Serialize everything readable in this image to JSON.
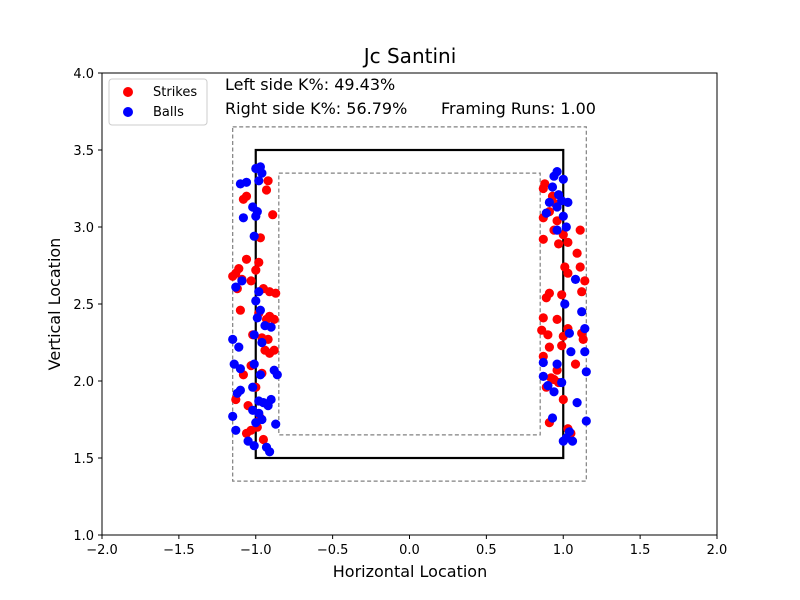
{
  "chart_data": {
    "type": "scatter",
    "title": "Jc Santini",
    "xlabel": "Horizontal Location",
    "ylabel": "Vertical Location",
    "xlim": [
      -2.0,
      2.0
    ],
    "ylim": [
      1.0,
      4.0
    ],
    "xticks": [
      "−2.0",
      "−1.5",
      "−1.0",
      "−0.5",
      "0.0",
      "0.5",
      "1.0",
      "1.5",
      "2.0"
    ],
    "yticks": [
      "1.0",
      "1.5",
      "2.0",
      "2.5",
      "3.0",
      "3.5",
      "4.0"
    ],
    "grid": false,
    "legend_position": "top-left",
    "annotations": {
      "left_k": "Left side K%: 49.43%",
      "right_k": "Right side K%: 56.79%",
      "framing": "Framing Runs: 1.00"
    },
    "zones": {
      "strike_zone": {
        "x": [
          -1.0,
          1.0
        ],
        "y": [
          1.5,
          3.5
        ]
      },
      "outer_zone": {
        "x": [
          -1.15,
          1.15
        ],
        "y": [
          1.35,
          3.65
        ]
      },
      "inner_zone": {
        "x": [
          -0.85,
          0.85
        ],
        "y": [
          1.65,
          3.35
        ]
      }
    },
    "series": [
      {
        "name": "Strikes",
        "color": "#ff0000",
        "points": [
          [
            -1.15,
            2.68
          ],
          [
            -1.13,
            2.7
          ],
          [
            -1.11,
            2.73
          ],
          [
            -1.09,
            2.66
          ],
          [
            -1.12,
            2.6
          ],
          [
            -1.08,
            3.18
          ],
          [
            -1.06,
            3.2
          ],
          [
            -0.92,
            3.3
          ],
          [
            -0.93,
            3.24
          ],
          [
            -0.89,
            3.08
          ],
          [
            -0.97,
            2.93
          ],
          [
            -1.06,
            2.79
          ],
          [
            -0.98,
            2.77
          ],
          [
            -1.0,
            2.72
          ],
          [
            -1.03,
            2.65
          ],
          [
            -0.95,
            2.6
          ],
          [
            -0.91,
            2.58
          ],
          [
            -0.87,
            2.57
          ],
          [
            -1.1,
            2.46
          ],
          [
            -0.98,
            2.44
          ],
          [
            -0.93,
            2.4
          ],
          [
            -0.91,
            2.42
          ],
          [
            -0.88,
            2.4
          ],
          [
            -1.02,
            2.3
          ],
          [
            -0.96,
            2.28
          ],
          [
            -0.92,
            2.27
          ],
          [
            -0.94,
            2.2
          ],
          [
            -0.91,
            2.18
          ],
          [
            -0.88,
            2.2
          ],
          [
            -1.03,
            2.1
          ],
          [
            -0.96,
            2.05
          ],
          [
            -1.08,
            2.04
          ],
          [
            -1.0,
            1.96
          ],
          [
            -1.13,
            1.88
          ],
          [
            -1.05,
            1.84
          ],
          [
            -0.97,
            1.76
          ],
          [
            -0.99,
            1.7
          ],
          [
            -1.03,
            1.68
          ],
          [
            -1.06,
            1.66
          ],
          [
            -0.95,
            1.62
          ],
          [
            0.88,
            3.28
          ],
          [
            0.87,
            3.25
          ],
          [
            0.93,
            3.2
          ],
          [
            0.95,
            3.15
          ],
          [
            0.91,
            3.1
          ],
          [
            0.87,
            3.06
          ],
          [
            0.96,
            3.04
          ],
          [
            0.94,
            2.98
          ],
          [
            1.0,
            2.95
          ],
          [
            1.03,
            2.9
          ],
          [
            0.97,
            2.89
          ],
          [
            0.87,
            2.92
          ],
          [
            1.11,
            2.98
          ],
          [
            1.09,
            2.83
          ],
          [
            1.11,
            2.74
          ],
          [
            1.01,
            2.74
          ],
          [
            1.03,
            2.7
          ],
          [
            1.14,
            2.65
          ],
          [
            0.91,
            2.57
          ],
          [
            0.89,
            2.54
          ],
          [
            0.99,
            2.56
          ],
          [
            1.12,
            2.58
          ],
          [
            0.96,
            2.4
          ],
          [
            1.03,
            2.34
          ],
          [
            1.0,
            2.29
          ],
          [
            0.87,
            2.41
          ],
          [
            0.86,
            2.33
          ],
          [
            0.9,
            2.3
          ],
          [
            1.12,
            2.31
          ],
          [
            1.13,
            2.27
          ],
          [
            0.91,
            2.22
          ],
          [
            0.99,
            2.23
          ],
          [
            0.87,
            2.16
          ],
          [
            1.08,
            2.11
          ],
          [
            0.96,
            2.07
          ],
          [
            0.92,
            2.02
          ],
          [
            0.94,
            2.01
          ],
          [
            0.97,
            1.99
          ],
          [
            0.89,
            1.96
          ],
          [
            1.0,
            1.88
          ],
          [
            0.91,
            1.73
          ],
          [
            1.03,
            1.69
          ],
          [
            1.05,
            1.66
          ]
        ]
      },
      {
        "name": "Balls",
        "color": "#0000ff",
        "points": [
          [
            -0.97,
            3.39
          ],
          [
            -1.0,
            3.38
          ],
          [
            -0.96,
            3.35
          ],
          [
            -1.1,
            3.28
          ],
          [
            -1.06,
            3.29
          ],
          [
            -0.98,
            3.3
          ],
          [
            -1.02,
            3.13
          ],
          [
            -0.99,
            3.1
          ],
          [
            -1.08,
            3.06
          ],
          [
            -1.0,
            3.07
          ],
          [
            -1.01,
            2.94
          ],
          [
            -1.09,
            2.65
          ],
          [
            -1.13,
            2.61
          ],
          [
            -0.98,
            2.58
          ],
          [
            -1.0,
            2.52
          ],
          [
            -0.97,
            2.46
          ],
          [
            -0.99,
            2.41
          ],
          [
            -0.94,
            2.36
          ],
          [
            -0.9,
            2.35
          ],
          [
            -1.01,
            2.3
          ],
          [
            -1.15,
            2.27
          ],
          [
            -0.96,
            2.25
          ],
          [
            -1.11,
            2.22
          ],
          [
            -1.01,
            2.11
          ],
          [
            -1.14,
            2.11
          ],
          [
            -1.1,
            2.08
          ],
          [
            -0.97,
            2.04
          ],
          [
            -0.88,
            2.07
          ],
          [
            -0.86,
            2.04
          ],
          [
            -1.02,
            1.96
          ],
          [
            -1.1,
            1.94
          ],
          [
            -1.12,
            1.92
          ],
          [
            -0.98,
            1.87
          ],
          [
            -0.95,
            1.86
          ],
          [
            -0.9,
            1.88
          ],
          [
            -0.92,
            1.84
          ],
          [
            -1.02,
            1.81
          ],
          [
            -0.98,
            1.79
          ],
          [
            -1.15,
            1.77
          ],
          [
            -0.96,
            1.75
          ],
          [
            -1.0,
            1.73
          ],
          [
            -0.87,
            1.72
          ],
          [
            -1.13,
            1.68
          ],
          [
            -1.05,
            1.61
          ],
          [
            -1.01,
            1.58
          ],
          [
            -0.93,
            1.57
          ],
          [
            -0.91,
            1.54
          ],
          [
            0.96,
            3.36
          ],
          [
            0.94,
            3.33
          ],
          [
            1.0,
            3.31
          ],
          [
            0.93,
            3.26
          ],
          [
            0.97,
            3.21
          ],
          [
            0.99,
            3.17
          ],
          [
            0.91,
            3.16
          ],
          [
            1.03,
            3.16
          ],
          [
            0.96,
            3.13
          ],
          [
            1.0,
            3.07
          ],
          [
            0.89,
            3.09
          ],
          [
            1.02,
            3.0
          ],
          [
            0.96,
            2.98
          ],
          [
            1.08,
            2.66
          ],
          [
            1.01,
            2.5
          ],
          [
            1.12,
            2.45
          ],
          [
            1.14,
            2.34
          ],
          [
            1.04,
            2.31
          ],
          [
            1.05,
            2.19
          ],
          [
            1.14,
            2.19
          ],
          [
            0.87,
            2.12
          ],
          [
            0.96,
            2.11
          ],
          [
            1.15,
            2.06
          ],
          [
            0.87,
            2.03
          ],
          [
            0.99,
            1.99
          ],
          [
            0.9,
            1.97
          ],
          [
            0.94,
            1.93
          ],
          [
            1.09,
            1.86
          ],
          [
            0.93,
            1.76
          ],
          [
            1.04,
            1.67
          ],
          [
            1.02,
            1.63
          ],
          [
            1.06,
            1.61
          ],
          [
            1.0,
            1.61
          ],
          [
            1.15,
            1.74
          ]
        ]
      }
    ]
  }
}
